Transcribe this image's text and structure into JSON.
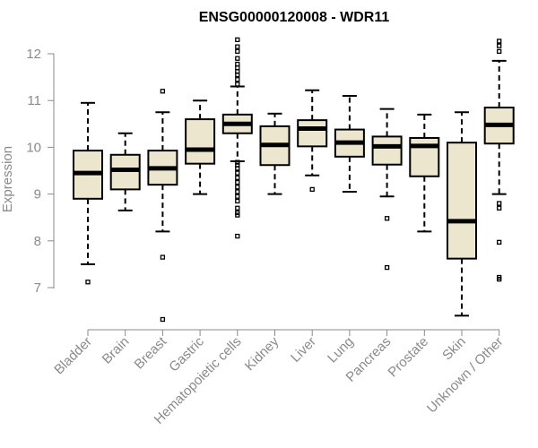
{
  "chart_data": {
    "type": "boxplot",
    "title": "ENSG00000120008 - WDR11",
    "xlabel": "",
    "ylabel": "Expression",
    "ylim": [
      6.1,
      12.5
    ],
    "yticks": [
      7,
      8,
      9,
      10,
      11,
      12
    ],
    "categories": [
      "Bladder",
      "Brain",
      "Breast",
      "Gastric",
      "Hematopoietic cells",
      "Kidney",
      "Liver",
      "Lung",
      "Pancreas",
      "Prostate",
      "Skin",
      "Unknown / Other"
    ],
    "boxes": [
      {
        "category": "Bladder",
        "whisker_low": 7.5,
        "q1": 8.9,
        "median": 9.45,
        "q3": 9.93,
        "whisker_high": 10.95,
        "outliers": [
          7.12
        ]
      },
      {
        "category": "Brain",
        "whisker_low": 8.65,
        "q1": 9.1,
        "median": 9.52,
        "q3": 9.84,
        "whisker_high": 10.3,
        "outliers": []
      },
      {
        "category": "Breast",
        "whisker_low": 8.2,
        "q1": 9.2,
        "median": 9.55,
        "q3": 9.93,
        "whisker_high": 10.75,
        "outliers": [
          7.65,
          6.32,
          11.2
        ]
      },
      {
        "category": "Gastric",
        "whisker_low": 9.0,
        "q1": 9.65,
        "median": 9.95,
        "q3": 10.6,
        "whisker_high": 11.0,
        "outliers": []
      },
      {
        "category": "Hematopoietic cells",
        "whisker_low": 9.7,
        "q1": 10.3,
        "median": 10.5,
        "q3": 10.7,
        "whisker_high": 11.3,
        "outliers": [
          8.1,
          8.55,
          8.6,
          8.7,
          8.85,
          8.95,
          9.05,
          9.15,
          9.25,
          9.35,
          9.45,
          9.55,
          9.62,
          9.68,
          11.35,
          11.45,
          11.55,
          11.62,
          11.7,
          11.78,
          11.9,
          12.05,
          12.15,
          12.3
        ]
      },
      {
        "category": "Kidney",
        "whisker_low": 9.0,
        "q1": 9.62,
        "median": 10.05,
        "q3": 10.45,
        "whisker_high": 10.72,
        "outliers": []
      },
      {
        "category": "Liver",
        "whisker_low": 9.4,
        "q1": 10.02,
        "median": 10.4,
        "q3": 10.58,
        "whisker_high": 11.22,
        "outliers": [
          9.1
        ]
      },
      {
        "category": "Lung",
        "whisker_low": 9.05,
        "q1": 9.8,
        "median": 10.1,
        "q3": 10.38,
        "whisker_high": 11.1,
        "outliers": []
      },
      {
        "category": "Pancreas",
        "whisker_low": 8.95,
        "q1": 9.63,
        "median": 10.02,
        "q3": 10.23,
        "whisker_high": 10.82,
        "outliers": [
          8.48,
          7.43
        ]
      },
      {
        "category": "Prostate",
        "whisker_low": 8.2,
        "q1": 9.38,
        "median": 10.03,
        "q3": 10.2,
        "whisker_high": 10.7,
        "outliers": []
      },
      {
        "category": "Skin",
        "whisker_low": 6.4,
        "q1": 7.62,
        "median": 8.42,
        "q3": 10.1,
        "whisker_high": 10.75,
        "outliers": []
      },
      {
        "category": "Unknown / Other",
        "whisker_low": 9.0,
        "q1": 10.08,
        "median": 10.48,
        "q3": 10.85,
        "whisker_high": 11.85,
        "outliers": [
          8.7,
          8.8,
          7.97,
          7.18,
          7.22,
          12.05,
          12.17,
          12.27
        ]
      }
    ]
  }
}
